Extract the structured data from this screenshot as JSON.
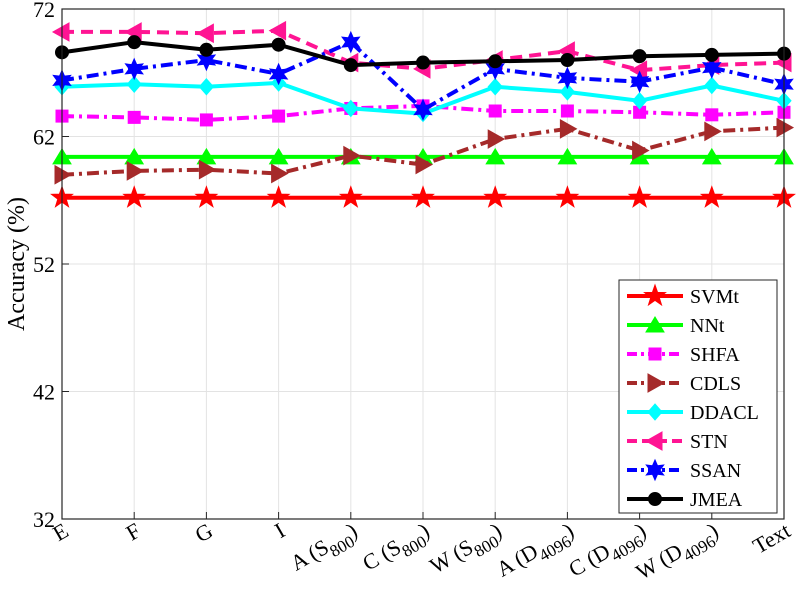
{
  "chart_data": {
    "type": "line",
    "ylabel": "Accuracy (%)",
    "xlabel": "",
    "ylim": [
      32,
      72
    ],
    "yticks": [
      32,
      42,
      52,
      62,
      72
    ],
    "grid": true,
    "legend_position": "bottom-right",
    "categories": [
      {
        "base": "E",
        "sub": "",
        "suffix": ""
      },
      {
        "base": "F",
        "sub": "",
        "suffix": ""
      },
      {
        "base": "G",
        "sub": "",
        "suffix": ""
      },
      {
        "base": "I",
        "sub": "",
        "suffix": ""
      },
      {
        "base": "A (S",
        "sub": "800",
        "suffix": ")"
      },
      {
        "base": "C (S",
        "sub": "800",
        "suffix": ")"
      },
      {
        "base": "W (S",
        "sub": "800",
        "suffix": ")"
      },
      {
        "base": "A (D",
        "sub": "4096",
        "suffix": ")"
      },
      {
        "base": "C (D",
        "sub": "4096",
        "suffix": ")"
      },
      {
        "base": "W (D",
        "sub": "4096",
        "suffix": ")"
      },
      {
        "base": "Text",
        "sub": "",
        "suffix": ""
      }
    ],
    "series": [
      {
        "name": "SVMt",
        "color": "#ff0000",
        "marker": "star",
        "dash": "solid",
        "values": [
          57.2,
          57.2,
          57.2,
          57.2,
          57.2,
          57.2,
          57.2,
          57.2,
          57.2,
          57.2,
          57.2
        ]
      },
      {
        "name": "NNt",
        "color": "#00ff00",
        "marker": "triangle-up",
        "dash": "solid",
        "values": [
          60.4,
          60.4,
          60.4,
          60.4,
          60.4,
          60.4,
          60.4,
          60.4,
          60.4,
          60.4,
          60.4
        ]
      },
      {
        "name": "SHFA",
        "color": "#ff00ff",
        "marker": "square",
        "dash": "dashdot",
        "values": [
          63.6,
          63.5,
          63.3,
          63.6,
          64.2,
          64.4,
          64.0,
          64.0,
          63.9,
          63.7,
          63.9
        ]
      },
      {
        "name": "CDLS",
        "color": "#a52a2a",
        "marker": "triangle-right",
        "dash": "dashdot",
        "values": [
          59.0,
          59.3,
          59.4,
          59.1,
          60.5,
          59.8,
          61.8,
          62.6,
          60.9,
          62.4,
          62.7
        ]
      },
      {
        "name": "DDACL",
        "color": "#00ffff",
        "marker": "diamond",
        "dash": "solid",
        "values": [
          65.9,
          66.1,
          65.9,
          66.2,
          64.2,
          63.8,
          65.9,
          65.5,
          64.8,
          66.0,
          64.8
        ]
      },
      {
        "name": "STN",
        "color": "#ff1493",
        "marker": "triangle-left",
        "dash": "dashed",
        "values": [
          70.2,
          70.2,
          70.1,
          70.3,
          67.8,
          67.3,
          68.0,
          68.7,
          67.2,
          67.6,
          67.8
        ]
      },
      {
        "name": "SSAN",
        "color": "#0000ff",
        "marker": "hexagram",
        "dash": "dashdot",
        "values": [
          66.4,
          67.3,
          68.0,
          66.9,
          69.4,
          64.1,
          67.3,
          66.6,
          66.3,
          67.4,
          66.1
        ]
      },
      {
        "name": "JMEA",
        "color": "#000000",
        "marker": "circle",
        "dash": "solid",
        "values": [
          68.6,
          69.4,
          68.8,
          69.2,
          67.6,
          67.8,
          67.9,
          68.0,
          68.3,
          68.4,
          68.5
        ]
      }
    ]
  }
}
